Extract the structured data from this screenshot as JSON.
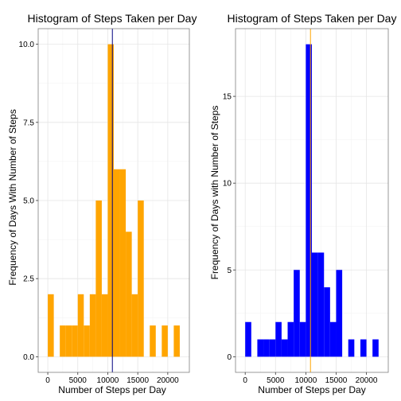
{
  "chart_data": [
    {
      "type": "bar",
      "title": "Histogram of Steps Taken per Day",
      "xlabel": "Number of Steps per Day",
      "ylabel": "Frequency of Days With Number of Steps",
      "xlim": [
        -1600,
        23600
      ],
      "ylim": [
        -0.5,
        10.5
      ],
      "xticks": [
        0,
        5000,
        10000,
        15000,
        20000
      ],
      "xtick_labels": [
        "0",
        "5000",
        "10000",
        "15000",
        "20000"
      ],
      "yticks": [
        0,
        2.5,
        5,
        7.5,
        10
      ],
      "ytick_labels": [
        "0.0",
        "2.5",
        "5.0",
        "7.5",
        "10.0"
      ],
      "grid": true,
      "bin_width": 1000,
      "bar_color": "#FFA500",
      "bins": [
        {
          "x": 0,
          "count": 2
        },
        {
          "x": 2000,
          "count": 1
        },
        {
          "x": 3000,
          "count": 1
        },
        {
          "x": 4000,
          "count": 1
        },
        {
          "x": 5000,
          "count": 2
        },
        {
          "x": 6000,
          "count": 1
        },
        {
          "x": 7000,
          "count": 2
        },
        {
          "x": 8000,
          "count": 5
        },
        {
          "x": 9000,
          "count": 2
        },
        {
          "x": 10000,
          "count": 10
        },
        {
          "x": 11000,
          "count": 6
        },
        {
          "x": 12000,
          "count": 6
        },
        {
          "x": 13000,
          "count": 4
        },
        {
          "x": 14000,
          "count": 2
        },
        {
          "x": 15000,
          "count": 5
        },
        {
          "x": 17000,
          "count": 1
        },
        {
          "x": 19000,
          "count": 1
        },
        {
          "x": 21000,
          "count": 1
        }
      ],
      "vline": {
        "x": 10766,
        "color": "#000080"
      }
    },
    {
      "type": "bar",
      "title": "Histogram of Steps Taken per Day",
      "xlabel": "Number of Steps per Day",
      "ylabel": "Frequency of Days with Number of Steps",
      "xlim": [
        -1600,
        23600
      ],
      "ylim": [
        -0.9,
        18.9
      ],
      "xticks": [
        0,
        5000,
        10000,
        15000,
        20000
      ],
      "xtick_labels": [
        "0",
        "5000",
        "10000",
        "15000",
        "20000"
      ],
      "yticks": [
        0,
        5,
        10,
        15
      ],
      "ytick_labels": [
        "0",
        "5",
        "10",
        "15"
      ],
      "grid": true,
      "bin_width": 1000,
      "bar_color": "#0000FF",
      "bins": [
        {
          "x": 0,
          "count": 2
        },
        {
          "x": 2000,
          "count": 1
        },
        {
          "x": 3000,
          "count": 1
        },
        {
          "x": 4000,
          "count": 1
        },
        {
          "x": 5000,
          "count": 2
        },
        {
          "x": 6000,
          "count": 1
        },
        {
          "x": 7000,
          "count": 2
        },
        {
          "x": 8000,
          "count": 5
        },
        {
          "x": 9000,
          "count": 2
        },
        {
          "x": 10000,
          "count": 18
        },
        {
          "x": 11000,
          "count": 6
        },
        {
          "x": 12000,
          "count": 6
        },
        {
          "x": 13000,
          "count": 4
        },
        {
          "x": 14000,
          "count": 2
        },
        {
          "x": 15000,
          "count": 5
        },
        {
          "x": 17000,
          "count": 1
        },
        {
          "x": 19000,
          "count": 1
        },
        {
          "x": 21000,
          "count": 1
        }
      ],
      "vline": {
        "x": 10766,
        "color": "#FFA500"
      }
    }
  ]
}
